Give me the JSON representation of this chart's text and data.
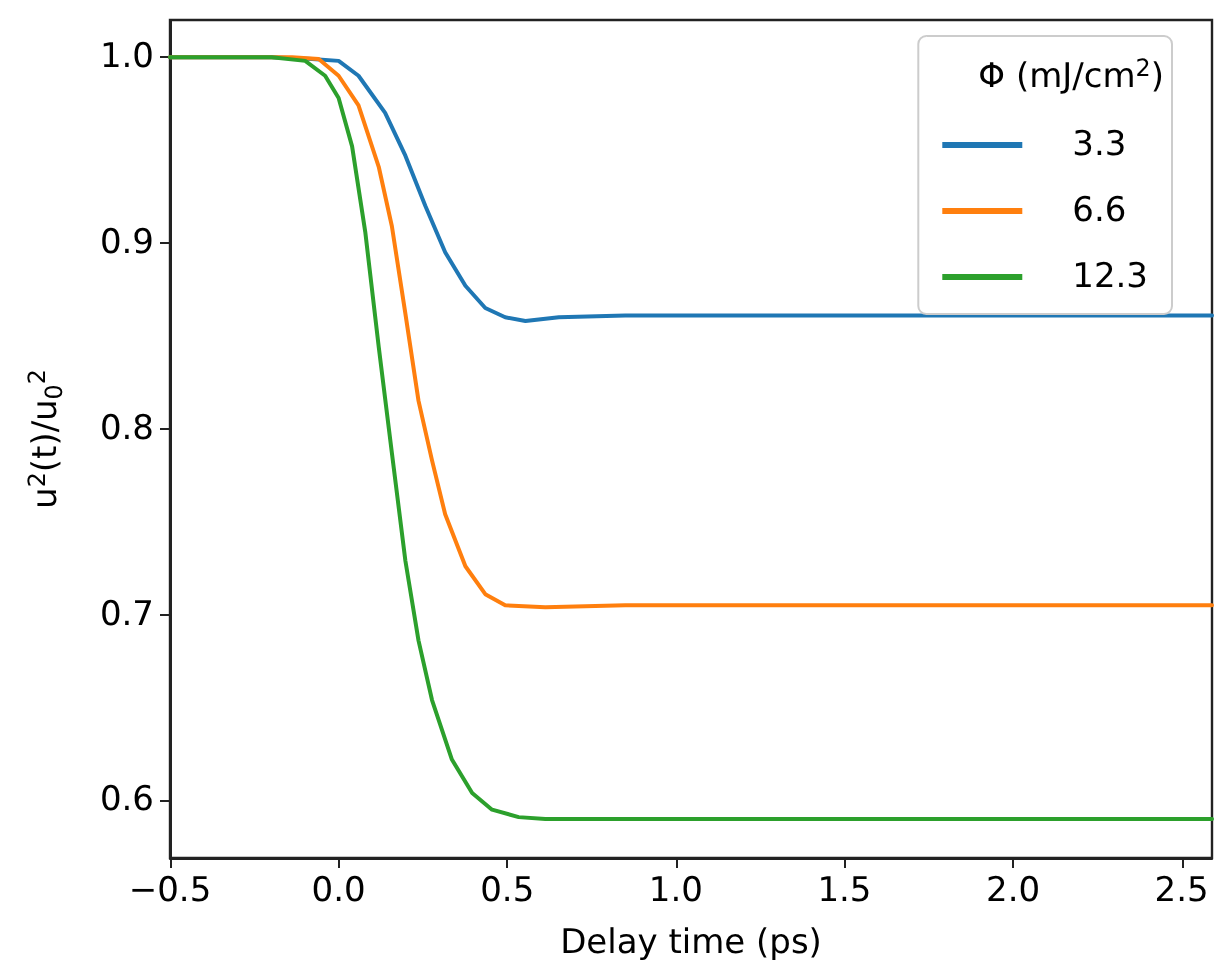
{
  "chart_data": {
    "type": "line",
    "xlabel": "Delay time (ps)",
    "ylabel": "u$^{2}$(t)/u$_{0}$$^{2}$",
    "legend_title": "Φ (mJ/cm$^{2}$)",
    "legend": "top right",
    "grid": false,
    "marker": "none",
    "line_style": "solid",
    "xlim": [
      -0.5,
      2.59
    ],
    "ylim": [
      0.569,
      1.02
    ],
    "xticks": [
      {
        "value": -0.5,
        "label": "−0.5"
      },
      {
        "value": 0,
        "label": "0.0"
      },
      0.5,
      {
        "value": 1,
        "label": "1.0"
      },
      1.5,
      {
        "value": 2,
        "label": "2.0"
      },
      2.5
    ],
    "yticks": [
      0.6,
      0.7,
      0.8,
      0.9,
      {
        "value": 1,
        "label": "1.0"
      }
    ],
    "series": [
      {
        "name": "3.3",
        "color": "#1f77b4",
        "x": [
          -0.5,
          -0.2,
          -0.079,
          0,
          0.059,
          0.138,
          0.198,
          0.257,
          0.316,
          0.376,
          0.435,
          0.494,
          0.554,
          0.653,
          0.85,
          1.5,
          2.59
        ],
        "values": [
          1,
          1,
          0.999,
          0.998,
          0.99,
          0.97,
          0.947,
          0.92,
          0.895,
          0.877,
          0.865,
          0.86,
          0.858,
          0.86,
          0.861,
          0.861,
          0.861
        ]
      },
      {
        "name": "6.6",
        "color": "#ff7f0e",
        "x": [
          -0.5,
          -0.138,
          -0.059,
          0,
          0.059,
          0.119,
          0.158,
          0.198,
          0.237,
          0.277,
          0.316,
          0.376,
          0.435,
          0.494,
          0.613,
          0.85,
          1.5,
          2.59
        ],
        "values": [
          1,
          1,
          0.999,
          0.99,
          0.974,
          0.941,
          0.909,
          0.862,
          0.815,
          0.783,
          0.754,
          0.726,
          0.711,
          0.705,
          0.704,
          0.705,
          0.705,
          0.705
        ]
      },
      {
        "name": "12.3",
        "color": "#2ca02c",
        "x": [
          -0.5,
          -0.198,
          -0.099,
          -0.04,
          0,
          0.04,
          0.079,
          0.119,
          0.158,
          0.198,
          0.237,
          0.277,
          0.336,
          0.396,
          0.455,
          0.534,
          0.613,
          0.85,
          1.5,
          2.59
        ],
        "values": [
          1,
          1,
          0.998,
          0.99,
          0.978,
          0.952,
          0.906,
          0.844,
          0.787,
          0.729,
          0.686,
          0.654,
          0.622,
          0.604,
          0.595,
          0.591,
          0.59,
          0.59,
          0.59,
          0.59
        ]
      }
    ]
  }
}
